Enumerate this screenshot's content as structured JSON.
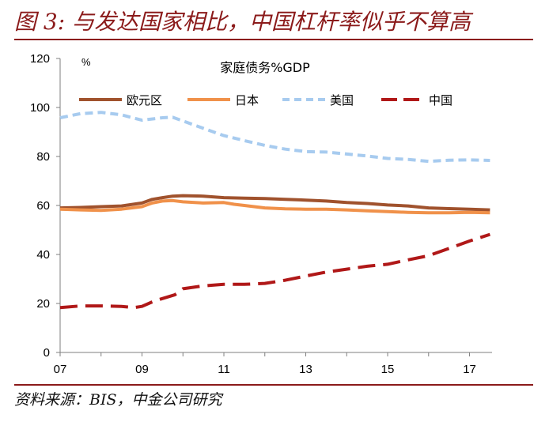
{
  "figure": {
    "title": "图 3: 与发达国家相比，中国杠杆率似乎不算高",
    "source": "资料来源：BIS，中金公司研究"
  },
  "chart_data": {
    "type": "line",
    "title": "家庭债务%GDP",
    "unit_label": "%",
    "ylim": [
      0,
      120
    ],
    "yticks": [
      0,
      20,
      40,
      60,
      80,
      100,
      120
    ],
    "xlim": [
      2007.0,
      2017.55
    ],
    "xticks": [
      {
        "value": 2007,
        "label": "07"
      },
      {
        "value": 2009,
        "label": "09"
      },
      {
        "value": 2011,
        "label": "11"
      },
      {
        "value": 2013,
        "label": "13"
      },
      {
        "value": 2015,
        "label": "15"
      },
      {
        "value": 2017,
        "label": "17"
      }
    ],
    "grid": false,
    "legend_position": "top",
    "series": [
      {
        "name": "欧元区",
        "color": "#a0522d",
        "dash": "solid",
        "x": [
          2007.0,
          2007.5,
          2008.0,
          2008.5,
          2009.0,
          2009.25,
          2009.5,
          2009.75,
          2010.0,
          2010.5,
          2011.0,
          2011.5,
          2012.0,
          2012.5,
          2013.0,
          2013.5,
          2014.0,
          2014.5,
          2015.0,
          2015.5,
          2016.0,
          2016.5,
          2017.0,
          2017.5
        ],
        "y": [
          59.0,
          59.2,
          59.5,
          59.8,
          61.0,
          62.5,
          63.2,
          63.8,
          64.0,
          63.8,
          63.2,
          63.0,
          62.8,
          62.5,
          62.2,
          61.8,
          61.2,
          60.8,
          60.2,
          59.8,
          59.0,
          58.7,
          58.5,
          58.2
        ]
      },
      {
        "name": "日本",
        "color": "#f0914a",
        "dash": "solid",
        "x": [
          2007.0,
          2007.5,
          2008.0,
          2008.5,
          2009.0,
          2009.25,
          2009.5,
          2009.75,
          2010.0,
          2010.5,
          2011.0,
          2011.25,
          2011.5,
          2012.0,
          2012.5,
          2013.0,
          2013.5,
          2014.0,
          2014.5,
          2015.0,
          2015.5,
          2016.0,
          2016.5,
          2017.0,
          2017.5
        ],
        "y": [
          58.5,
          58.2,
          58.0,
          58.5,
          59.5,
          61.0,
          61.8,
          62.0,
          61.5,
          61.0,
          61.2,
          60.5,
          60.0,
          59.0,
          58.6,
          58.5,
          58.5,
          58.2,
          57.8,
          57.5,
          57.2,
          57.0,
          57.0,
          57.2,
          57.0
        ]
      },
      {
        "name": "美国",
        "color": "#a7cbef",
        "dash": "dashed",
        "x": [
          2007.0,
          2007.5,
          2008.0,
          2008.5,
          2009.0,
          2009.5,
          2009.75,
          2010.0,
          2010.5,
          2011.0,
          2011.5,
          2012.0,
          2012.5,
          2013.0,
          2013.5,
          2014.0,
          2014.5,
          2015.0,
          2015.5,
          2016.0,
          2016.5,
          2017.0,
          2017.5
        ],
        "y": [
          95.8,
          97.5,
          98.0,
          97.0,
          94.8,
          95.8,
          96.0,
          94.5,
          91.5,
          88.5,
          86.5,
          84.5,
          83.0,
          82.0,
          81.8,
          81.0,
          80.2,
          79.2,
          78.8,
          78.0,
          78.5,
          78.6,
          78.4
        ]
      },
      {
        "name": "中国",
        "color": "#b01818",
        "dash": "longdash",
        "x": [
          2007.0,
          2007.5,
          2008.0,
          2008.5,
          2008.8,
          2009.0,
          2009.3,
          2009.8,
          2010.0,
          2010.5,
          2011.0,
          2011.5,
          2012.0,
          2012.5,
          2013.0,
          2013.5,
          2014.0,
          2014.5,
          2015.0,
          2015.5,
          2016.0,
          2016.5,
          2017.0,
          2017.5
        ],
        "y": [
          18.3,
          19.0,
          19.0,
          18.8,
          18.3,
          18.8,
          21.0,
          23.5,
          26.0,
          27.2,
          27.8,
          27.8,
          28.2,
          29.5,
          31.2,
          32.8,
          34.0,
          35.2,
          36.0,
          37.8,
          39.5,
          42.5,
          45.5,
          48.2
        ]
      }
    ]
  }
}
